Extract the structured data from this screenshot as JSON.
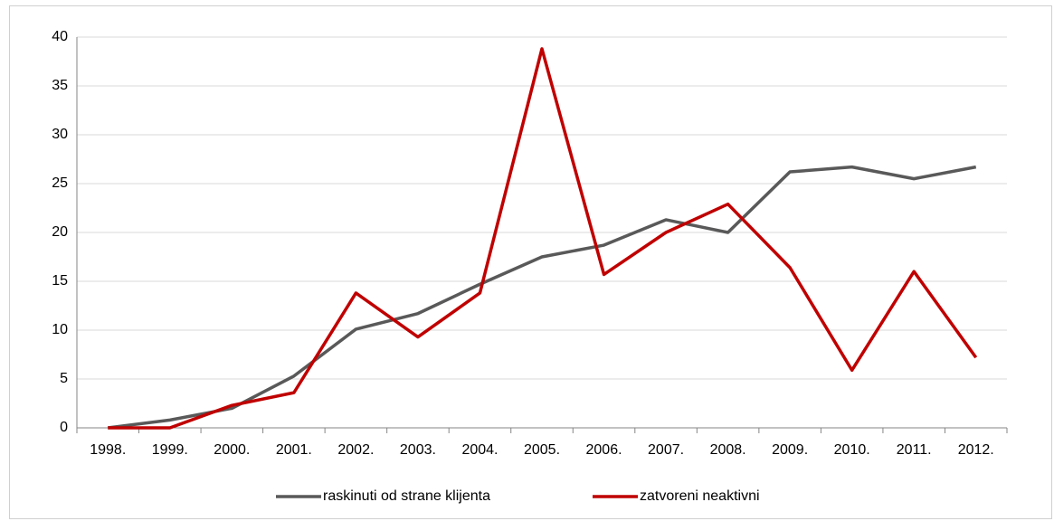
{
  "chart_data": {
    "type": "line",
    "categories": [
      "1998.",
      "1999.",
      "2000.",
      "2001.",
      "2002.",
      "2003.",
      "2004.",
      "2005.",
      "2006.",
      "2007.",
      "2008.",
      "2009.",
      "2010.",
      "2011.",
      "2012."
    ],
    "series": [
      {
        "name": "raskinuti od strane klijenta",
        "color": "#595959",
        "values": [
          0,
          0.8,
          2,
          5.3,
          10.1,
          11.7,
          14.7,
          17.5,
          18.7,
          21.3,
          20,
          26.2,
          26.7,
          25.5,
          26.7
        ]
      },
      {
        "name": "zatvoreni neaktivni",
        "color": "#c00000",
        "values": [
          0,
          0,
          2.3,
          3.6,
          13.8,
          9.3,
          13.8,
          38.8,
          15.7,
          20,
          22.9,
          16.4,
          5.9,
          16,
          7.2
        ]
      }
    ],
    "ylim": [
      0,
      40
    ],
    "yticks": [
      0,
      5,
      10,
      15,
      20,
      25,
      30,
      35,
      40
    ],
    "grid": true,
    "legend": "bottom"
  }
}
